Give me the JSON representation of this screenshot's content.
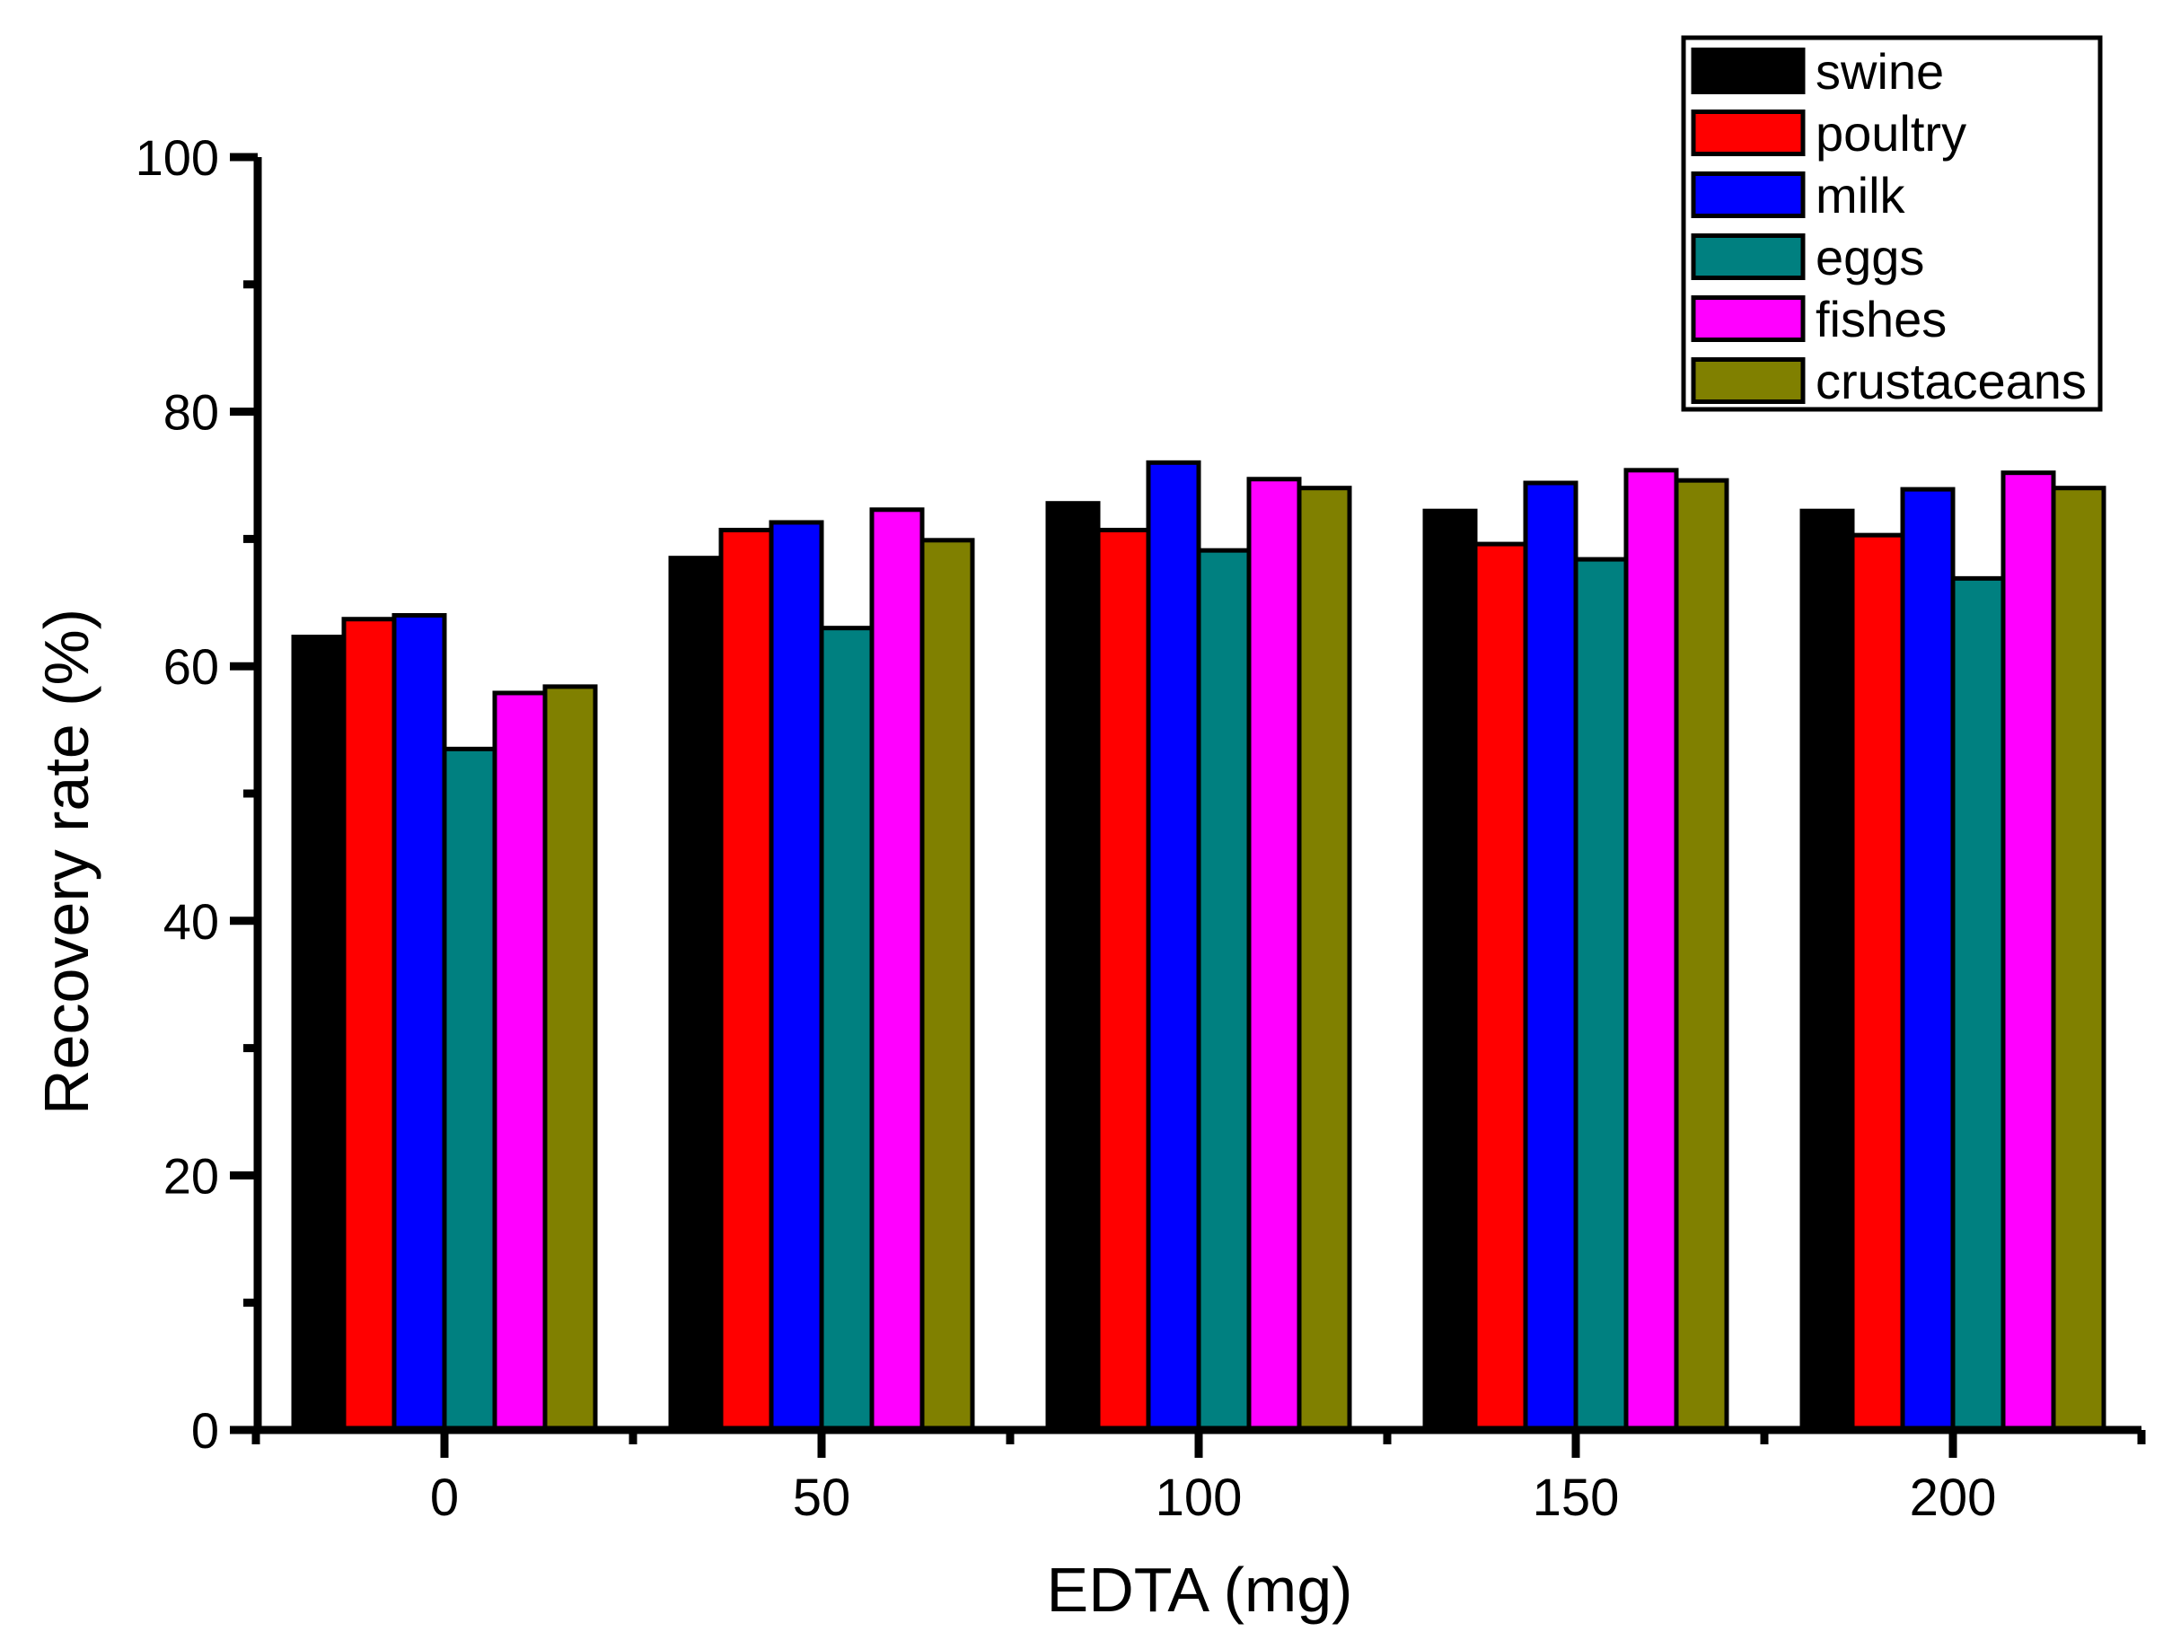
{
  "figure": {
    "background": "#ffffff",
    "axis_color": "#000000"
  },
  "chart_data": {
    "type": "bar",
    "title": "",
    "xlabel": "EDTA (mg)",
    "ylabel": "Recovery rate (%)",
    "categories": [
      "0",
      "50",
      "100",
      "150",
      "200"
    ],
    "y_ticks": [
      0,
      20,
      40,
      60,
      80,
      100
    ],
    "y_minor_ticks": [
      10,
      30,
      50,
      70,
      90
    ],
    "ylim": [
      0,
      100
    ],
    "grid": false,
    "bar_outline_color": "#000000",
    "legend_position": "top-right",
    "legend_labels": [
      "swine",
      "poultry",
      "milk",
      "eggs",
      "fishes",
      "crustaceans"
    ],
    "series": [
      {
        "name": "swine",
        "color": "#000000",
        "values": [
          62.3,
          68.5,
          72.8,
          72.2,
          72.2
        ]
      },
      {
        "name": "poultry",
        "color": "#ff0000",
        "values": [
          63.7,
          70.7,
          70.7,
          69.6,
          70.3
        ]
      },
      {
        "name": "milk",
        "color": "#0000ff",
        "values": [
          64.0,
          71.3,
          76.0,
          74.4,
          73.9
        ]
      },
      {
        "name": "eggs",
        "color": "#008080",
        "values": [
          53.5,
          63.0,
          69.1,
          68.4,
          66.9
        ]
      },
      {
        "name": "fishes",
        "color": "#ff00ff",
        "values": [
          57.9,
          72.3,
          74.7,
          75.4,
          75.2
        ]
      },
      {
        "name": "crustaceans",
        "color": "#808000",
        "values": [
          58.4,
          69.9,
          74.0,
          74.6,
          74.0
        ]
      }
    ]
  }
}
